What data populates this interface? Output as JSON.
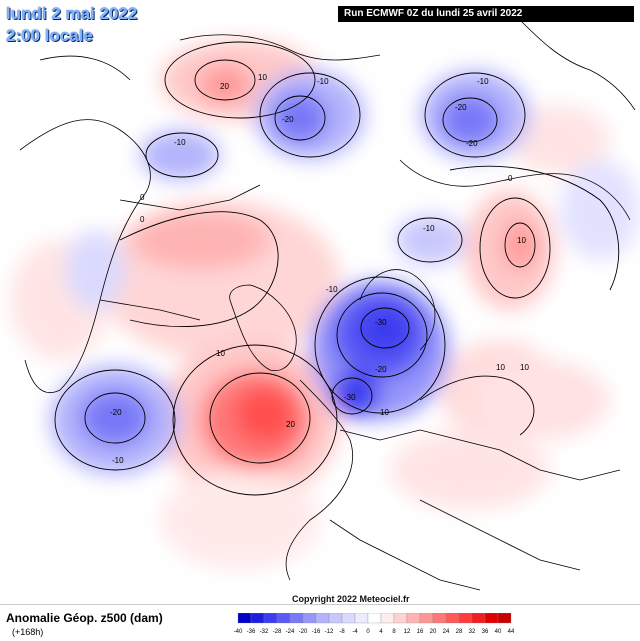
{
  "header": {
    "date_line": "lundi 2 mai 2022",
    "time_line": "2:00 locale",
    "run_info": "Run ECMWF 0Z du lundi 25 avril 2022"
  },
  "footer": {
    "variable": "Anomalie Géop. z500 (dam)",
    "lead_time": "(+168h)",
    "copyright": "Copyright 2022 Meteociel.fr"
  },
  "legend": {
    "ticks": [
      "-40",
      "-36",
      "-32",
      "-28",
      "-24",
      "-20",
      "-16",
      "-12",
      "-8",
      "-4",
      "0",
      "4",
      "8",
      "12",
      "16",
      "20",
      "24",
      "28",
      "32",
      "36",
      "40",
      "44"
    ],
    "colors": [
      "#0000c8",
      "#1e1ee0",
      "#3c3cf0",
      "#5a5af5",
      "#7878f8",
      "#9696fa",
      "#b4b4fc",
      "#c8c8fd",
      "#dadafe",
      "#ececff",
      "#ffffff",
      "#ffecec",
      "#ffd2d2",
      "#ffb4b4",
      "#ff9696",
      "#ff7878",
      "#ff5a5a",
      "#ff3c3c",
      "#f01e1e",
      "#e00000",
      "#c80000"
    ]
  },
  "contour_labels": [
    "-10",
    "-20",
    "-10",
    "20",
    "10",
    "-10",
    "-20",
    "-10",
    "-20",
    "0",
    "0",
    "10",
    "-10",
    "-30",
    "-20",
    "-30",
    "10",
    "20",
    "-20",
    "-10",
    "10",
    "0",
    "10",
    "10"
  ]
}
